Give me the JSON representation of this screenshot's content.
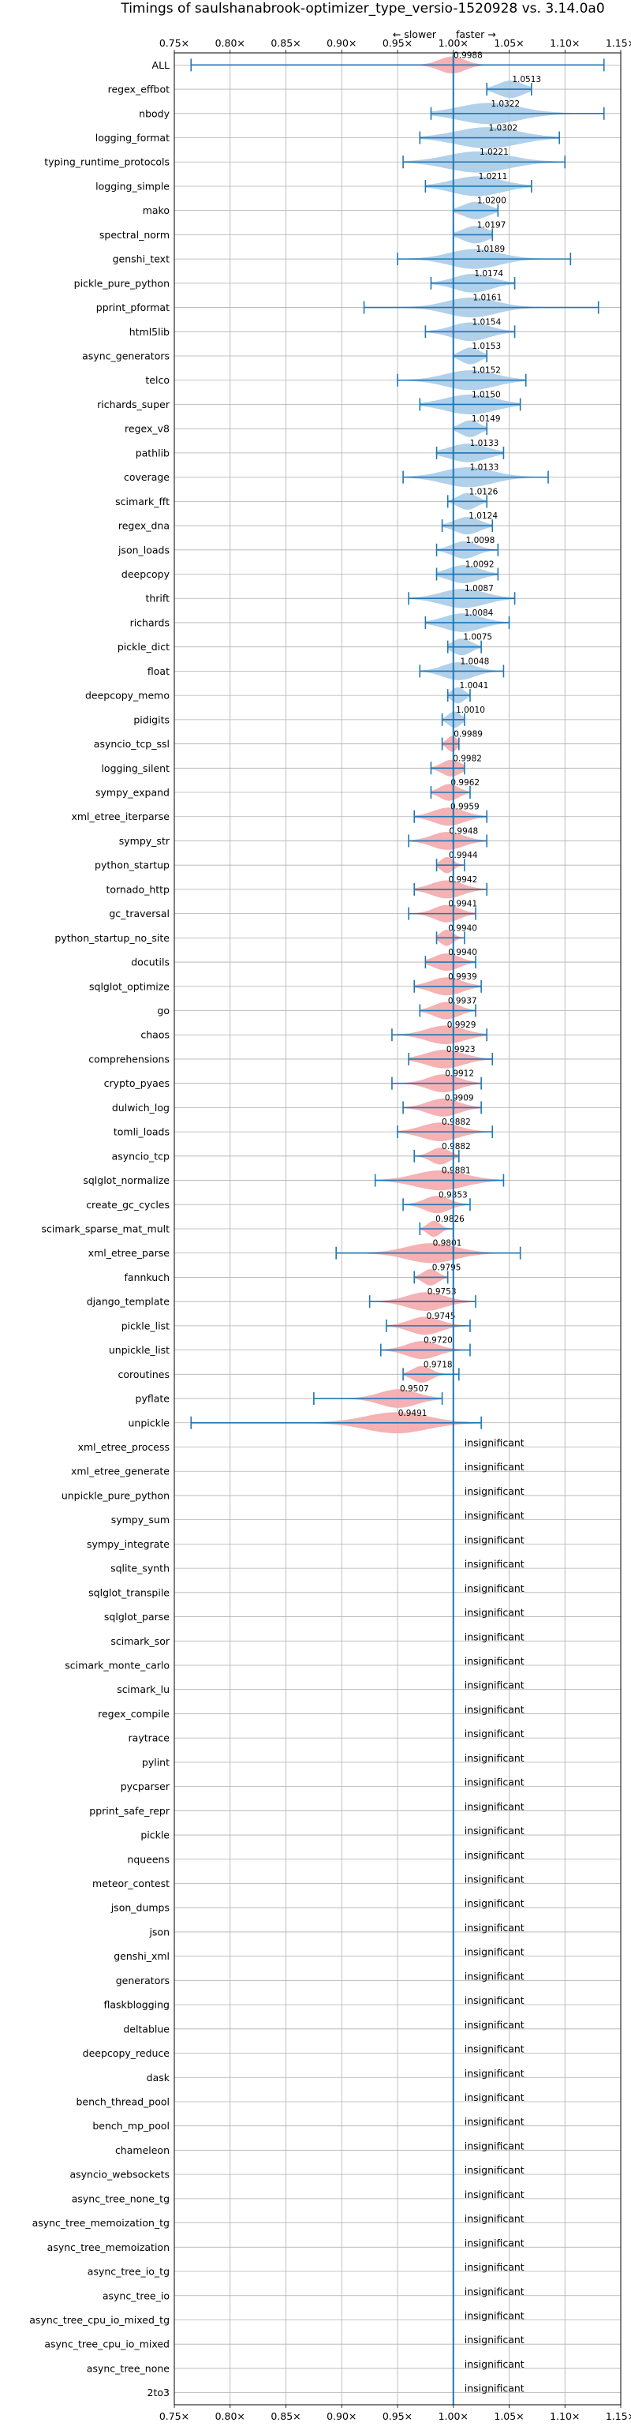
{
  "chart_data": {
    "type": "violin",
    "title": "Timings of saulshanabrook-optimizer_type_versio-1520928 vs. 3.14.0a0",
    "direction_labels": {
      "slower": "← slower",
      "faster": "faster →"
    },
    "xlim": [
      0.75,
      1.15
    ],
    "x_ticks": [
      "0.75×",
      "0.80×",
      "0.85×",
      "0.90×",
      "0.95×",
      "1.00×",
      "1.05×",
      "1.10×",
      "1.15×"
    ],
    "grid": true,
    "colors": {
      "faster": "#a9cbe8",
      "slower": "#f4a9ab",
      "line": "#1f77b4"
    },
    "insignificant_label": "insignificant",
    "benchmarks": [
      {
        "name": "ALL",
        "value": 0.9988,
        "min": 0.765,
        "max": 1.135,
        "spread": 0.02,
        "significant": true
      },
      {
        "name": "regex_effbot",
        "value": 1.0513,
        "min": 1.03,
        "max": 1.07,
        "spread": 0.02,
        "significant": true
      },
      {
        "name": "nbody",
        "value": 1.0322,
        "min": 0.98,
        "max": 1.135,
        "spread": 0.05,
        "significant": true
      },
      {
        "name": "logging_format",
        "value": 1.0302,
        "min": 0.97,
        "max": 1.095,
        "spread": 0.05,
        "significant": true
      },
      {
        "name": "typing_runtime_protocols",
        "value": 1.0221,
        "min": 0.955,
        "max": 1.1,
        "spread": 0.05,
        "significant": true
      },
      {
        "name": "logging_simple",
        "value": 1.0211,
        "min": 0.975,
        "max": 1.07,
        "spread": 0.04,
        "significant": true
      },
      {
        "name": "mako",
        "value": 1.02,
        "min": 1.0,
        "max": 1.04,
        "spread": 0.02,
        "significant": true
      },
      {
        "name": "spectral_norm",
        "value": 1.0197,
        "min": 1.0,
        "max": 1.035,
        "spread": 0.02,
        "significant": true
      },
      {
        "name": "genshi_text",
        "value": 1.0189,
        "min": 0.95,
        "max": 1.105,
        "spread": 0.04,
        "significant": true
      },
      {
        "name": "pickle_pure_python",
        "value": 1.0174,
        "min": 0.98,
        "max": 1.055,
        "spread": 0.03,
        "significant": true
      },
      {
        "name": "pprint_pformat",
        "value": 1.0161,
        "min": 0.92,
        "max": 1.13,
        "spread": 0.04,
        "significant": true
      },
      {
        "name": "html5lib",
        "value": 1.0154,
        "min": 0.975,
        "max": 1.055,
        "spread": 0.03,
        "significant": true
      },
      {
        "name": "async_generators",
        "value": 1.0153,
        "min": 1.0,
        "max": 1.03,
        "spread": 0.015,
        "significant": true
      },
      {
        "name": "telco",
        "value": 1.0152,
        "min": 0.95,
        "max": 1.065,
        "spread": 0.04,
        "significant": true
      },
      {
        "name": "richards_super",
        "value": 1.015,
        "min": 0.97,
        "max": 1.06,
        "spread": 0.04,
        "significant": true
      },
      {
        "name": "regex_v8",
        "value": 1.0149,
        "min": 1.0,
        "max": 1.03,
        "spread": 0.015,
        "significant": true
      },
      {
        "name": "pathlib",
        "value": 1.0133,
        "min": 0.985,
        "max": 1.045,
        "spread": 0.03,
        "significant": true
      },
      {
        "name": "coverage",
        "value": 1.0133,
        "min": 0.955,
        "max": 1.085,
        "spread": 0.04,
        "significant": true
      },
      {
        "name": "scimark_fft",
        "value": 1.0126,
        "min": 0.995,
        "max": 1.03,
        "spread": 0.015,
        "significant": true
      },
      {
        "name": "regex_dna",
        "value": 1.0124,
        "min": 0.99,
        "max": 1.035,
        "spread": 0.02,
        "significant": true
      },
      {
        "name": "json_loads",
        "value": 1.0098,
        "min": 0.985,
        "max": 1.04,
        "spread": 0.02,
        "significant": true
      },
      {
        "name": "deepcopy",
        "value": 1.0092,
        "min": 0.985,
        "max": 1.04,
        "spread": 0.025,
        "significant": true
      },
      {
        "name": "thrift",
        "value": 1.0087,
        "min": 0.96,
        "max": 1.055,
        "spread": 0.035,
        "significant": true
      },
      {
        "name": "richards",
        "value": 1.0084,
        "min": 0.975,
        "max": 1.05,
        "spread": 0.03,
        "significant": true
      },
      {
        "name": "pickle_dict",
        "value": 1.0075,
        "min": 0.995,
        "max": 1.025,
        "spread": 0.015,
        "significant": true
      },
      {
        "name": "float",
        "value": 1.0048,
        "min": 0.97,
        "max": 1.045,
        "spread": 0.025,
        "significant": true
      },
      {
        "name": "deepcopy_memo",
        "value": 1.0041,
        "min": 0.995,
        "max": 1.015,
        "spread": 0.01,
        "significant": true
      },
      {
        "name": "pidigits",
        "value": 1.001,
        "min": 0.99,
        "max": 1.01,
        "spread": 0.01,
        "significant": true
      },
      {
        "name": "asyncio_tcp_ssl",
        "value": 0.9989,
        "min": 0.99,
        "max": 1.005,
        "spread": 0.008,
        "significant": true
      },
      {
        "name": "logging_silent",
        "value": 0.9982,
        "min": 0.98,
        "max": 1.01,
        "spread": 0.015,
        "significant": true
      },
      {
        "name": "sympy_expand",
        "value": 0.9962,
        "min": 0.98,
        "max": 1.015,
        "spread": 0.015,
        "significant": true
      },
      {
        "name": "xml_etree_iterparse",
        "value": 0.9959,
        "min": 0.965,
        "max": 1.03,
        "spread": 0.025,
        "significant": true
      },
      {
        "name": "sympy_str",
        "value": 0.9948,
        "min": 0.96,
        "max": 1.03,
        "spread": 0.025,
        "significant": true
      },
      {
        "name": "python_startup",
        "value": 0.9944,
        "min": 0.985,
        "max": 1.01,
        "spread": 0.01,
        "significant": true
      },
      {
        "name": "tornado_http",
        "value": 0.9942,
        "min": 0.965,
        "max": 1.03,
        "spread": 0.025,
        "significant": true
      },
      {
        "name": "gc_traversal",
        "value": 0.9941,
        "min": 0.96,
        "max": 1.02,
        "spread": 0.02,
        "significant": true
      },
      {
        "name": "python_startup_no_site",
        "value": 0.994,
        "min": 0.985,
        "max": 1.01,
        "spread": 0.01,
        "significant": true
      },
      {
        "name": "docutils",
        "value": 0.994,
        "min": 0.975,
        "max": 1.02,
        "spread": 0.02,
        "significant": true
      },
      {
        "name": "sqlglot_optimize",
        "value": 0.9939,
        "min": 0.965,
        "max": 1.025,
        "spread": 0.025,
        "significant": true
      },
      {
        "name": "go",
        "value": 0.9937,
        "min": 0.97,
        "max": 1.02,
        "spread": 0.02,
        "significant": true
      },
      {
        "name": "chaos",
        "value": 0.9929,
        "min": 0.945,
        "max": 1.03,
        "spread": 0.03,
        "significant": true
      },
      {
        "name": "comprehensions",
        "value": 0.9923,
        "min": 0.96,
        "max": 1.035,
        "spread": 0.03,
        "significant": true
      },
      {
        "name": "crypto_pyaes",
        "value": 0.9912,
        "min": 0.945,
        "max": 1.025,
        "spread": 0.025,
        "significant": true
      },
      {
        "name": "dulwich_log",
        "value": 0.9909,
        "min": 0.955,
        "max": 1.025,
        "spread": 0.025,
        "significant": true
      },
      {
        "name": "tomli_loads",
        "value": 0.9882,
        "min": 0.95,
        "max": 1.035,
        "spread": 0.03,
        "significant": true
      },
      {
        "name": "asyncio_tcp",
        "value": 0.9882,
        "min": 0.965,
        "max": 1.005,
        "spread": 0.015,
        "significant": true
      },
      {
        "name": "sqlglot_normalize",
        "value": 0.9881,
        "min": 0.93,
        "max": 1.045,
        "spread": 0.04,
        "significant": true
      },
      {
        "name": "create_gc_cycles",
        "value": 0.9853,
        "min": 0.955,
        "max": 1.015,
        "spread": 0.02,
        "significant": true
      },
      {
        "name": "scimark_sparse_mat_mult",
        "value": 0.9826,
        "min": 0.97,
        "max": 1.0,
        "spread": 0.01,
        "significant": true
      },
      {
        "name": "xml_etree_parse",
        "value": 0.9801,
        "min": 0.895,
        "max": 1.06,
        "spread": 0.04,
        "significant": true
      },
      {
        "name": "fannkuch",
        "value": 0.9795,
        "min": 0.965,
        "max": 0.995,
        "spread": 0.012,
        "significant": true
      },
      {
        "name": "django_template",
        "value": 0.9753,
        "min": 0.925,
        "max": 1.02,
        "spread": 0.03,
        "significant": true
      },
      {
        "name": "pickle_list",
        "value": 0.9745,
        "min": 0.94,
        "max": 1.015,
        "spread": 0.025,
        "significant": true
      },
      {
        "name": "unpickle_list",
        "value": 0.972,
        "min": 0.935,
        "max": 1.015,
        "spread": 0.025,
        "significant": true
      },
      {
        "name": "coroutines",
        "value": 0.9718,
        "min": 0.955,
        "max": 1.005,
        "spread": 0.015,
        "significant": true
      },
      {
        "name": "pyflate",
        "value": 0.9507,
        "min": 0.875,
        "max": 0.99,
        "spread": 0.03,
        "significant": true
      },
      {
        "name": "unpickle",
        "value": 0.9491,
        "min": 0.765,
        "max": 1.025,
        "spread": 0.05,
        "significant": true
      },
      {
        "name": "xml_etree_process",
        "significant": false
      },
      {
        "name": "xml_etree_generate",
        "significant": false
      },
      {
        "name": "unpickle_pure_python",
        "significant": false
      },
      {
        "name": "sympy_sum",
        "significant": false
      },
      {
        "name": "sympy_integrate",
        "significant": false
      },
      {
        "name": "sqlite_synth",
        "significant": false
      },
      {
        "name": "sqlglot_transpile",
        "significant": false
      },
      {
        "name": "sqlglot_parse",
        "significant": false
      },
      {
        "name": "scimark_sor",
        "significant": false
      },
      {
        "name": "scimark_monte_carlo",
        "significant": false
      },
      {
        "name": "scimark_lu",
        "significant": false
      },
      {
        "name": "regex_compile",
        "significant": false
      },
      {
        "name": "raytrace",
        "significant": false
      },
      {
        "name": "pylint",
        "significant": false
      },
      {
        "name": "pycparser",
        "significant": false
      },
      {
        "name": "pprint_safe_repr",
        "significant": false
      },
      {
        "name": "pickle",
        "significant": false
      },
      {
        "name": "nqueens",
        "significant": false
      },
      {
        "name": "meteor_contest",
        "significant": false
      },
      {
        "name": "json_dumps",
        "significant": false
      },
      {
        "name": "json",
        "significant": false
      },
      {
        "name": "genshi_xml",
        "significant": false
      },
      {
        "name": "generators",
        "significant": false
      },
      {
        "name": "flaskblogging",
        "significant": false
      },
      {
        "name": "deltablue",
        "significant": false
      },
      {
        "name": "deepcopy_reduce",
        "significant": false
      },
      {
        "name": "dask",
        "significant": false
      },
      {
        "name": "bench_thread_pool",
        "significant": false
      },
      {
        "name": "bench_mp_pool",
        "significant": false
      },
      {
        "name": "chameleon",
        "significant": false
      },
      {
        "name": "asyncio_websockets",
        "significant": false
      },
      {
        "name": "async_tree_none_tg",
        "significant": false
      },
      {
        "name": "async_tree_memoization_tg",
        "significant": false
      },
      {
        "name": "async_tree_memoization",
        "significant": false
      },
      {
        "name": "async_tree_io_tg",
        "significant": false
      },
      {
        "name": "async_tree_io",
        "significant": false
      },
      {
        "name": "async_tree_cpu_io_mixed_tg",
        "significant": false
      },
      {
        "name": "async_tree_cpu_io_mixed",
        "significant": false
      },
      {
        "name": "async_tree_none",
        "significant": false
      },
      {
        "name": "2to3",
        "significant": false
      }
    ]
  }
}
